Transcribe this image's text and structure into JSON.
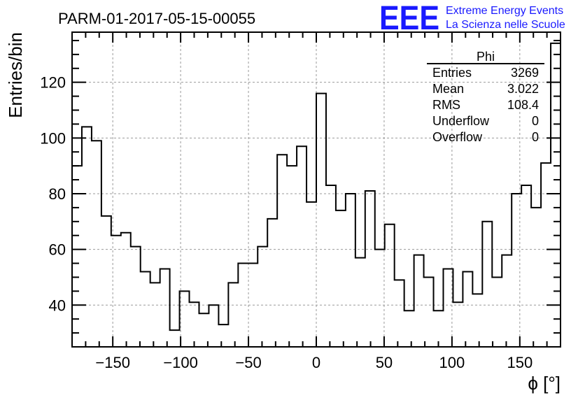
{
  "page": {
    "title": "PARM-01-2017-05-15-00055",
    "logo": "EEE",
    "logo_line1": "Extreme Energy Events",
    "logo_line2": "La Scienza nelle Scuole"
  },
  "stats": {
    "name": "Phi",
    "rows": [
      {
        "label": "Entries",
        "value": "3269"
      },
      {
        "label": "Mean",
        "value": "3.022"
      },
      {
        "label": "RMS",
        "value": "108.4"
      },
      {
        "label": "Underflow",
        "value": "0"
      },
      {
        "label": "Overflow",
        "value": "0"
      }
    ]
  },
  "colors": {
    "line": "#000000",
    "grid": "#999999",
    "logo": "#1a1aff"
  },
  "chart_data": {
    "type": "histogram",
    "title": "PARM-01-2017-05-15-00055",
    "xlabel": "ϕ [°]",
    "ylabel": "Entries/bin",
    "xlim": [
      -180,
      180
    ],
    "ylim": [
      25,
      138
    ],
    "bin_width": 7.2,
    "x_ticks": [
      -150,
      -100,
      -50,
      0,
      50,
      100,
      150
    ],
    "x_tick_labels": [
      "−150",
      "−100",
      "−50",
      "0",
      "50",
      "100",
      "150"
    ],
    "y_ticks": [
      40,
      60,
      80,
      100,
      120
    ],
    "y_tick_labels": [
      "40",
      "60",
      "80",
      "100",
      "120"
    ],
    "grid": true,
    "values": [
      90,
      104,
      99,
      72,
      65,
      66,
      61,
      52,
      48,
      53,
      31,
      45,
      41,
      37,
      40,
      33,
      48,
      55,
      55,
      61,
      71,
      94,
      90,
      97,
      77,
      116,
      83,
      74,
      80,
      57,
      81,
      60,
      69,
      49,
      38,
      58,
      50,
      38,
      53,
      41,
      52,
      44,
      70,
      50,
      58,
      80,
      83,
      75,
      91,
      134
    ]
  }
}
